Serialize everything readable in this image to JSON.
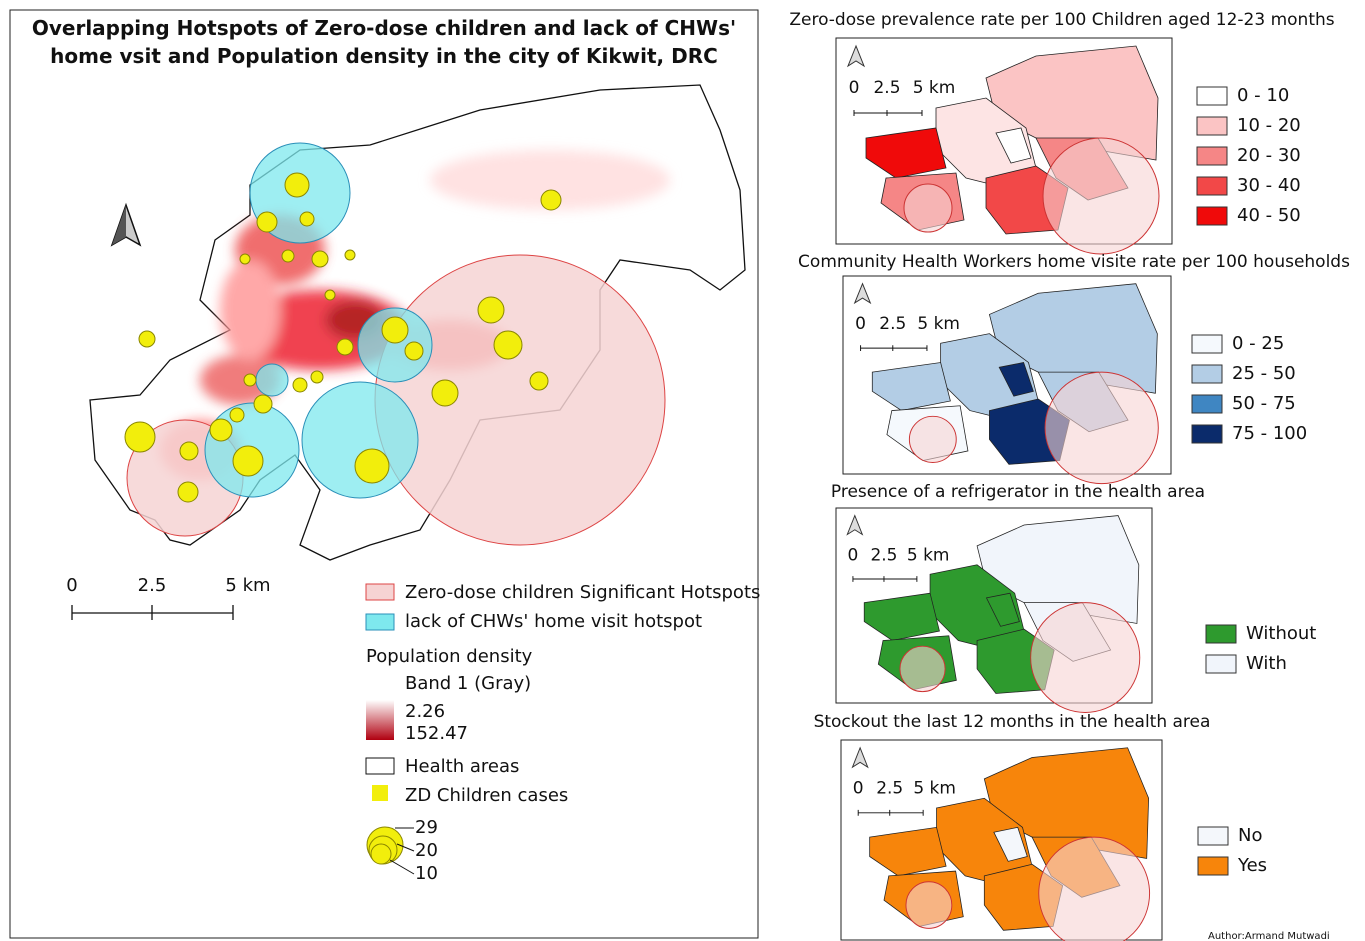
{
  "main_map": {
    "title": "Overlapping Hotspots of Zero-dose children and lack of CHWs' home vsit and Population density in the city of Kikwit, DRC",
    "scale_bar": [
      "0",
      "2.5",
      "5 km"
    ],
    "legend": {
      "hotspot_zd": "Zero-dose children Significant Hotspots",
      "hotspot_chw": "lack of CHWs' home visit hotspot",
      "density_title": "Population density",
      "density_band": "Band 1 (Gray)",
      "density_min": "2.26",
      "density_max": "152.47",
      "health_areas": "Health areas",
      "zd_cases": "ZD Children cases",
      "sizes": [
        "29",
        "20",
        "10"
      ]
    }
  },
  "inset_maps": [
    {
      "title": "Zero-dose prevalence rate per 100 Children aged 12-23 months",
      "scale_bar": [
        "0",
        "2.5",
        "5 km"
      ],
      "legend": [
        {
          "label": "0 - 10",
          "color": "#ffffff"
        },
        {
          "label": "10 - 20",
          "color": "#fbc4c4"
        },
        {
          "label": "20 - 30",
          "color": "#f58686"
        },
        {
          "label": "30 - 40",
          "color": "#f24848"
        },
        {
          "label": "40 - 50",
          "color": "#f00a0a"
        }
      ]
    },
    {
      "title": "Community Health Workers home visite rate per 100 households",
      "scale_bar": [
        "0",
        "2.5",
        "5 km"
      ],
      "legend": [
        {
          "label": "0 - 25",
          "color": "#f5f9fd"
        },
        {
          "label": "25 - 50",
          "color": "#b3cde5"
        },
        {
          "label": "50 - 75",
          "color": "#3f86c2"
        },
        {
          "label": "75 - 100",
          "color": "#0b2b6b"
        }
      ]
    },
    {
      "title": "Presence of a refrigerator in the health area",
      "scale_bar": [
        "0",
        "2.5",
        "5 km"
      ],
      "legend": [
        {
          "label": "Without",
          "color": "#2e9a2e"
        },
        {
          "label": "With",
          "color": "#f1f5fb"
        }
      ]
    },
    {
      "title": "Stockout the last 12 months in the health area",
      "scale_bar": [
        "0",
        "2.5",
        "5 km"
      ],
      "legend": [
        {
          "label": "No",
          "color": "#f4f7fb"
        },
        {
          "label": "Yes",
          "color": "#f7850b"
        }
      ]
    }
  ],
  "author": "Author:Armand Mutwadi"
}
